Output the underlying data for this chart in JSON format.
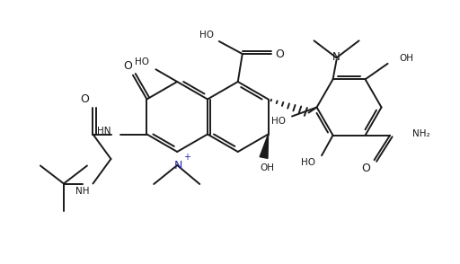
{
  "background_color": "#ffffff",
  "line_color": "#1a1a1a",
  "blue_color": "#2222aa",
  "figsize": [
    5.12,
    2.94
  ],
  "dpi": 100,
  "xlim": [
    0,
    10.24
  ],
  "ylim": [
    0,
    5.88
  ]
}
